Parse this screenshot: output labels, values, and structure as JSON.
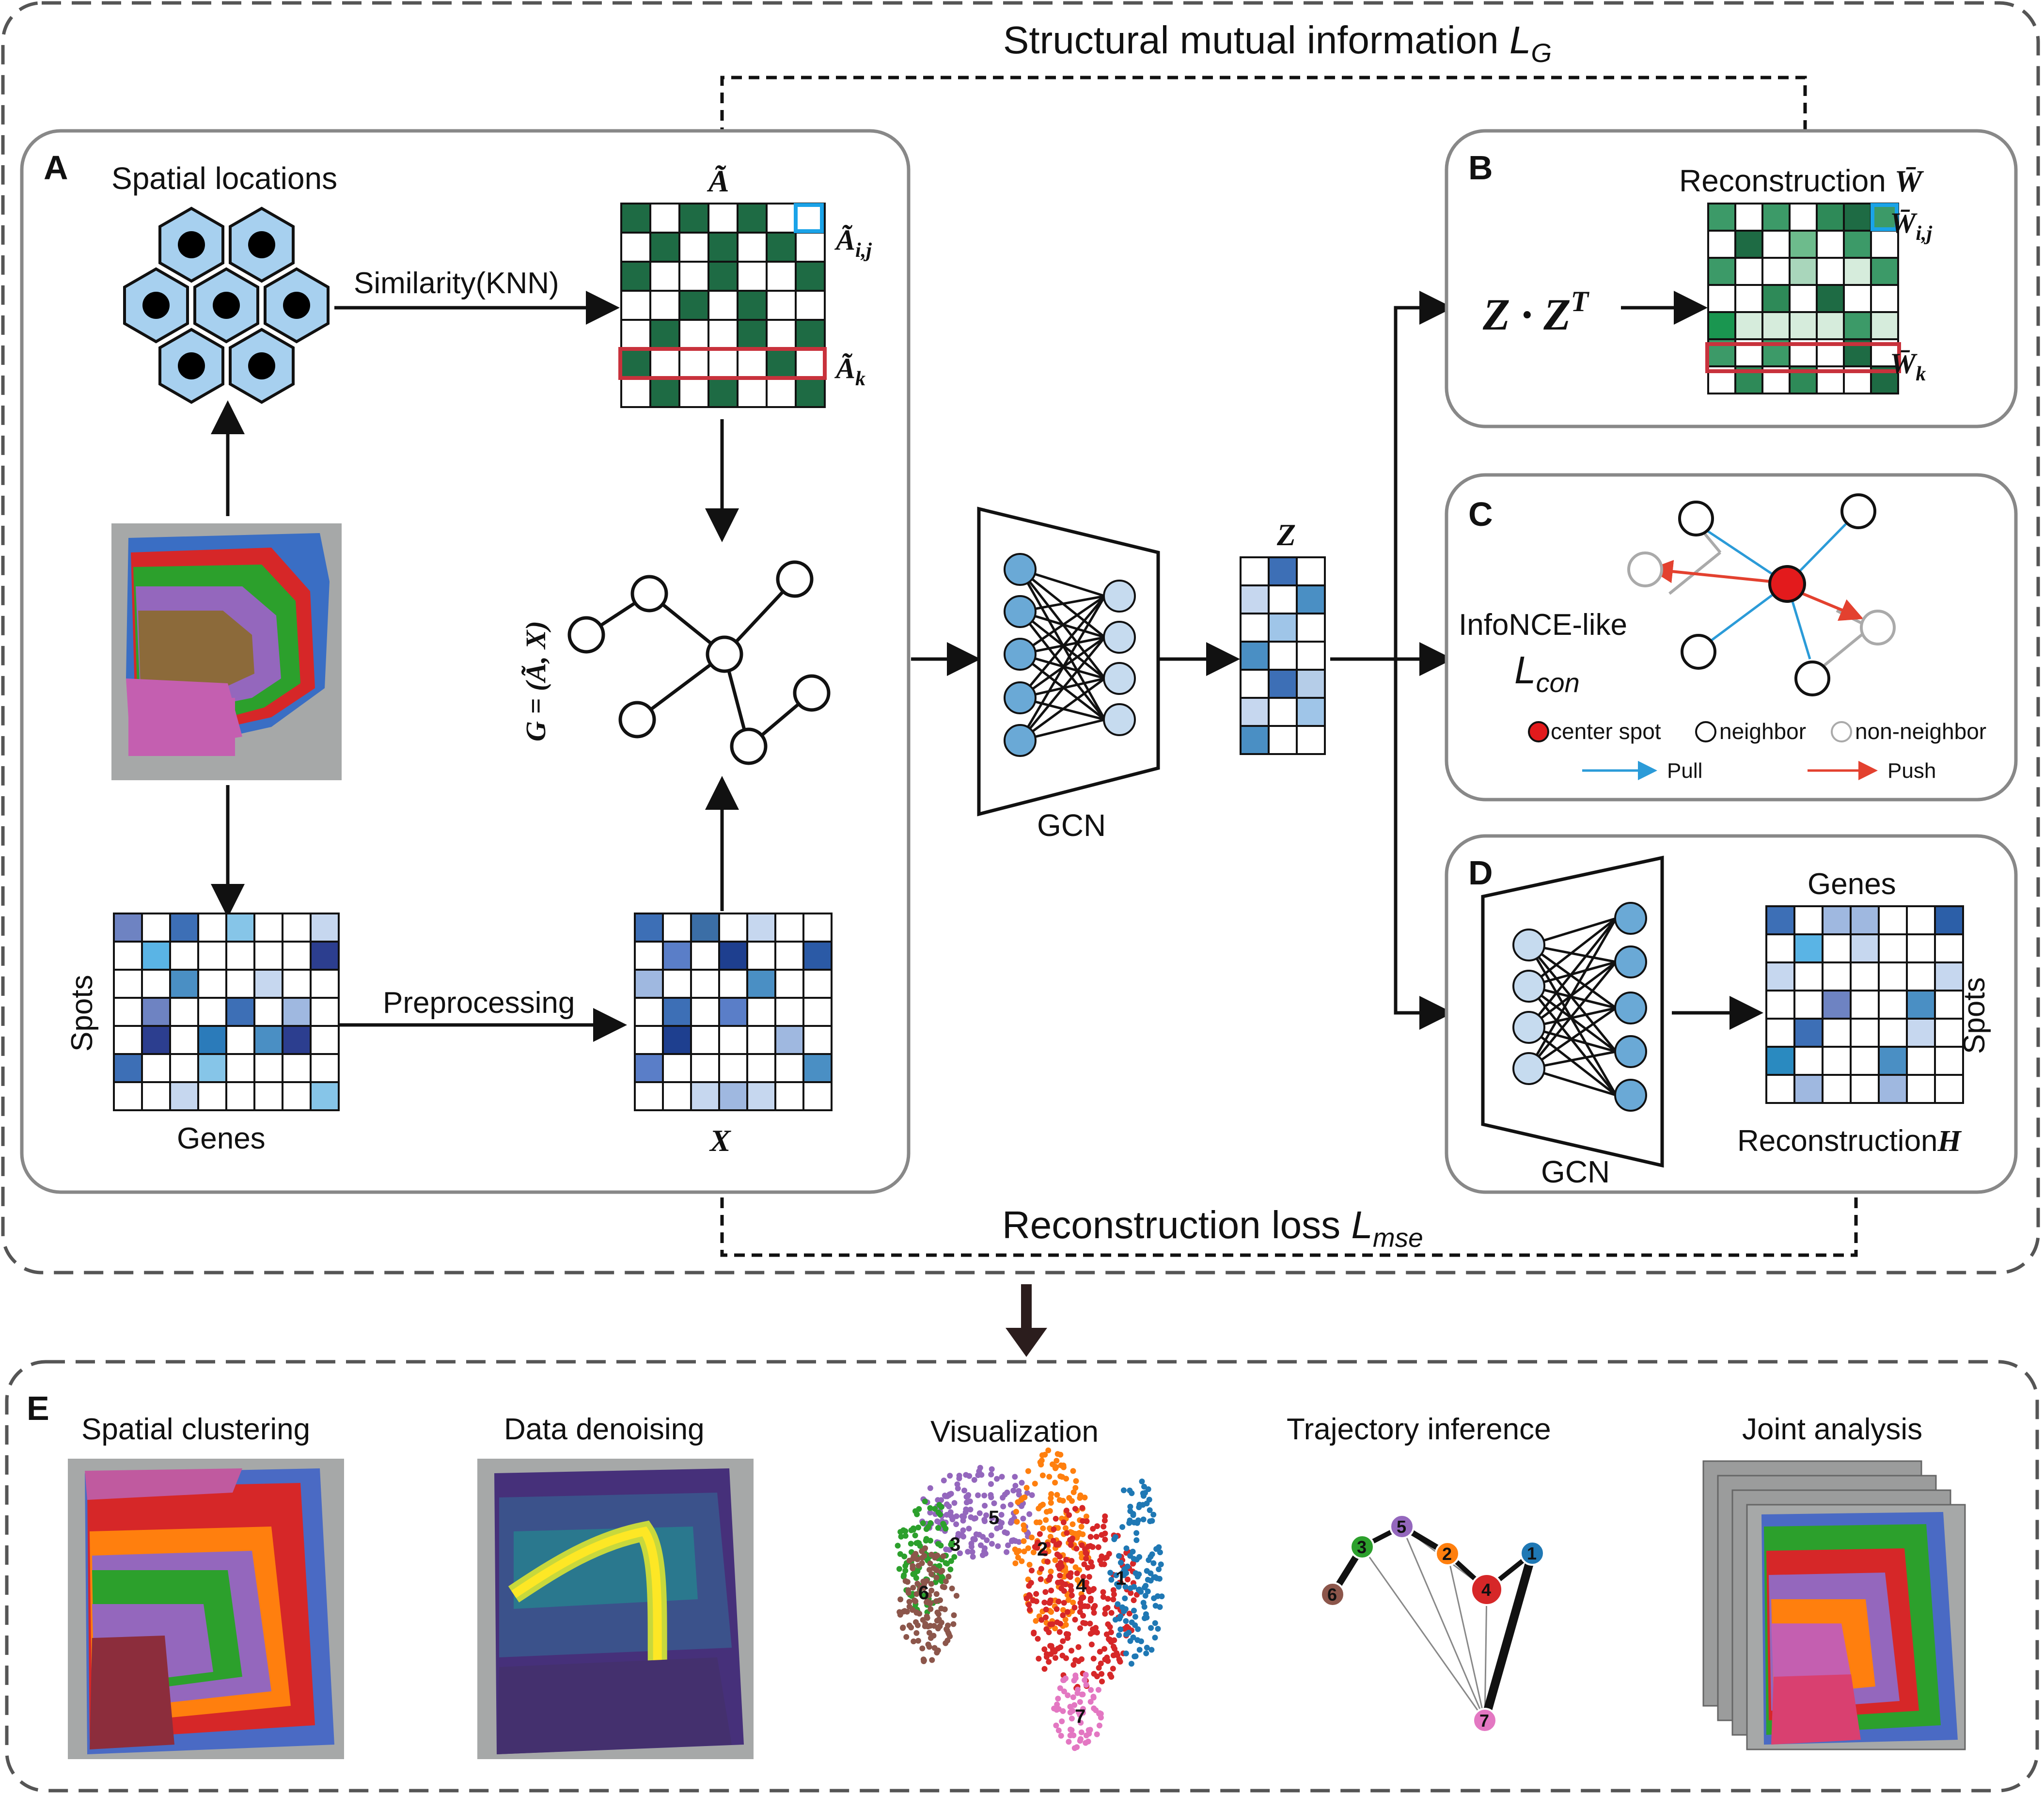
{
  "top_loss": {
    "label": "Structural mutual information ",
    "sym": "L",
    "sub": "G"
  },
  "bottom_loss": {
    "label": "Reconstruction loss ",
    "sym": "L",
    "sub": "mse"
  },
  "panel_a": {
    "letter": "A",
    "spatial_locations": "Spatial locations",
    "similarity": "Similarity(KNN)",
    "a_tilde": "Ã",
    "a_ij": "Ã",
    "a_ij_sub": "i,j",
    "a_k": "Ã",
    "a_k_sub": "k",
    "graph_label": "G = (Ã, X)",
    "spots": "Spots",
    "genes": "Genes",
    "preprocessing": "Preprocessing",
    "x_label": "X"
  },
  "gcn": {
    "label": "GCN",
    "z_label": "Z"
  },
  "panel_b": {
    "letter": "B",
    "title": "Reconstruction ",
    "title_sym": "W̄",
    "zzt": "Z · Z",
    "zzt_sup": "T",
    "w_ij": "W̄",
    "w_ij_sub": "i,j",
    "w_k": "W̄",
    "w_k_sub": "k"
  },
  "panel_c": {
    "letter": "C",
    "infonce": "InfoNCE-like",
    "l_con": "L",
    "l_con_sub": "con",
    "legend_center": "center spot",
    "legend_neighbor": "neighbor",
    "legend_non": "non-neighbor",
    "pull": "Pull",
    "push": "Push"
  },
  "panel_d": {
    "letter": "D",
    "genes": "Genes",
    "spots": "Spots",
    "gcn": "GCN",
    "reconstruction": "Reconstruction",
    "h_sym": "H"
  },
  "panel_e": {
    "letter": "E",
    "titles": [
      "Spatial clustering",
      "Data denoising",
      "Visualization",
      "Trajectory inference",
      "Joint analysis"
    ],
    "umap_clusters": [
      "1",
      "2",
      "3",
      "4",
      "5",
      "6",
      "7"
    ],
    "traj_nodes": [
      "1",
      "2",
      "3",
      "4",
      "5",
      "6",
      "7"
    ]
  },
  "colors": {
    "dark_green": "#1e6b44",
    "mid_green": "#3c9a68",
    "light_green": "#a9d6bb",
    "hex_blue": "#a7d0ef",
    "gcn_in": "#6aa9d6",
    "gcn_out": "#c6dbef",
    "red_center": "#e31a1c",
    "pull_blue": "#2b9bd8",
    "push_red": "#e3412f",
    "cluster_colors": [
      "#1f78b4",
      "#ff7f0e",
      "#2ca02c",
      "#d62728",
      "#9467bd",
      "#8c564b",
      "#e377c2"
    ]
  }
}
